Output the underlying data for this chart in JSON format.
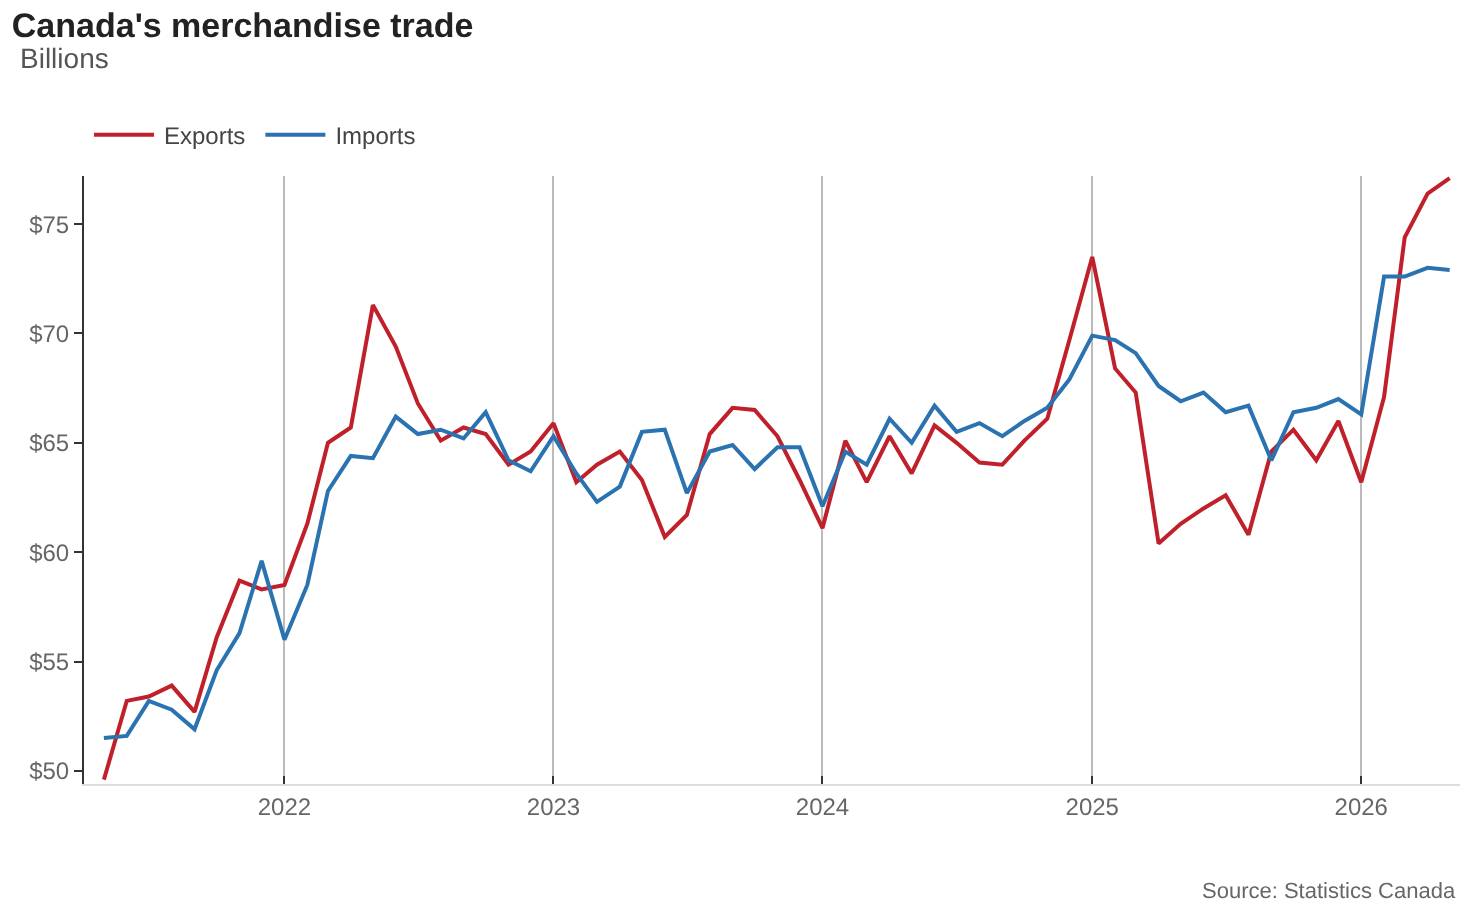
{
  "chart_data": {
    "type": "line",
    "title": "Canada's merchandise trade",
    "subtitle": "Billions",
    "annotations": [
      "Source: Statistics Canada"
    ],
    "x": [
      "2021-05",
      "2021-06",
      "2021-07",
      "2021-08",
      "2021-09",
      "2021-10",
      "2021-11",
      "2021-12",
      "2022-01",
      "2022-02",
      "2022-03",
      "2022-04",
      "2022-05",
      "2022-06",
      "2022-07",
      "2022-08",
      "2022-09",
      "2022-10",
      "2022-11",
      "2022-12",
      "2023-01",
      "2023-02",
      "2023-03",
      "2023-04",
      "2023-05",
      "2023-06",
      "2023-07",
      "2023-08",
      "2023-09",
      "2023-10",
      "2023-11",
      "2023-12",
      "2024-01",
      "2024-02",
      "2024-03",
      "2024-04",
      "2024-05",
      "2024-06",
      "2024-07",
      "2024-08",
      "2024-09",
      "2024-10",
      "2024-11",
      "2024-12",
      "2025-01",
      "2025-02",
      "2025-03",
      "2025-04",
      "2025-05",
      "2025-06",
      "2025-07",
      "2025-08",
      "2025-09",
      "2025-10",
      "2025-11",
      "2025-12",
      "2026-01",
      "2026-02",
      "2026-03",
      "2026-04",
      "2026-05"
    ],
    "series": [
      {
        "name": "Exports",
        "color": "#c0202a",
        "values": [
          49.6,
          53.2,
          53.4,
          53.9,
          52.7,
          56.1,
          58.7,
          58.3,
          58.5,
          61.3,
          65.0,
          65.7,
          71.3,
          69.4,
          66.8,
          65.1,
          65.7,
          65.4,
          64.0,
          64.6,
          65.9,
          63.2,
          64.0,
          64.6,
          63.3,
          60.7,
          61.7,
          65.4,
          66.6,
          66.5,
          65.3,
          63.3,
          61.1,
          65.1,
          63.2,
          65.3,
          63.6,
          65.8,
          65.0,
          64.1,
          64.0,
          65.1,
          66.1,
          69.7,
          73.5,
          68.4,
          67.3,
          60.4,
          61.3,
          62.0,
          62.6,
          60.8,
          64.6,
          65.6,
          64.2,
          66.0,
          63.2,
          67.1,
          74.4,
          76.4,
          77.1
        ]
      },
      {
        "name": "Imports",
        "color": "#2a72b0",
        "values": [
          51.5,
          51.6,
          53.2,
          52.8,
          51.9,
          54.6,
          56.3,
          59.6,
          56.0,
          58.5,
          62.8,
          64.4,
          64.3,
          66.2,
          65.4,
          65.6,
          65.2,
          66.4,
          64.2,
          63.7,
          65.3,
          63.6,
          62.3,
          63.0,
          65.5,
          65.6,
          62.7,
          64.6,
          64.9,
          63.8,
          64.8,
          64.8,
          62.1,
          64.6,
          64.0,
          66.1,
          65.0,
          66.7,
          65.5,
          65.9,
          65.3,
          66.0,
          66.6,
          67.9,
          69.9,
          69.7,
          69.1,
          67.6,
          66.9,
          67.3,
          66.4,
          66.7,
          64.2,
          66.4,
          66.6,
          67.0,
          66.3,
          72.6,
          72.6,
          73.0,
          72.9
        ]
      }
    ],
    "xlim": [
      "2021-04-04",
      "2026-05-15"
    ],
    "xticks": [
      {
        "value": "2022-01",
        "label": "2022"
      },
      {
        "value": "2023-01",
        "label": "2023"
      },
      {
        "value": "2024-01",
        "label": "2024"
      },
      {
        "value": "2025-01",
        "label": "2025"
      },
      {
        "value": "2026-01",
        "label": "2026"
      }
    ],
    "ylim": [
      49.4,
      77.2
    ],
    "yticks": [
      {
        "value": 50,
        "label": "$50"
      },
      {
        "value": 55,
        "label": "$55"
      },
      {
        "value": 60,
        "label": "$60"
      },
      {
        "value": 65,
        "label": "$65"
      },
      {
        "value": 70,
        "label": "$70"
      },
      {
        "value": 75,
        "label": "$75"
      }
    ],
    "grid": "x",
    "legend": "top left",
    "line_style": "solid"
  }
}
